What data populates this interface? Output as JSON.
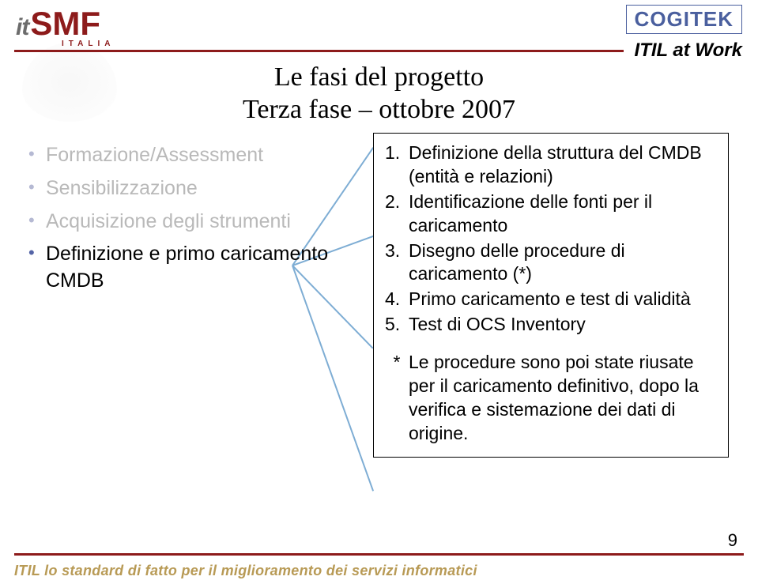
{
  "colors": {
    "brand_red": "#8d1b1b",
    "rule": "#8d1b1b",
    "black": "#000000",
    "cogitek": "#4a5f9e",
    "muted": "#6c6c6c",
    "bullet_active": "#5464a6",
    "bullet_dim": "#b5b9d3",
    "text_dim": "#b9b9b9",
    "box_border": "#000000",
    "callout": "#7eadd4",
    "bottom_text": "#b89a55"
  },
  "logo_itsmf": {
    "it": "it",
    "smf": "SMF",
    "sub": "ITALIA"
  },
  "logo_cogitek": "COGITEK",
  "header_text": "ITIL at Work",
  "title_line1": "Le fasi del progetto",
  "title_line2": "Terza fase – ottobre 2007",
  "bullets": [
    {
      "text": "Formazione/Assessment",
      "dim": true,
      "indent": false
    },
    {
      "text": "Sensibilizzazione",
      "dim": true,
      "indent": true
    },
    {
      "text": "Acquisizione degli strumenti",
      "dim": true,
      "indent": false
    },
    {
      "text": "Definizione e primo caricamento CMDB",
      "dim": false,
      "indent": false
    }
  ],
  "right_list": [
    "Definizione della struttura del CMDB (entità e relazioni)",
    "Identificazione delle fonti per il caricamento",
    "Disegno delle procedure di caricamento (*)",
    "Primo caricamento e test di validità",
    "Test di OCS Inventory"
  ],
  "right_note": "Le procedure sono poi state riusate per il caricamento definitivo, dopo la verifica e sistemazione dei dati di origine.",
  "bottom_text": "ITIL lo standard di fatto per il miglioramento dei servizi informatici",
  "page_number": "9"
}
